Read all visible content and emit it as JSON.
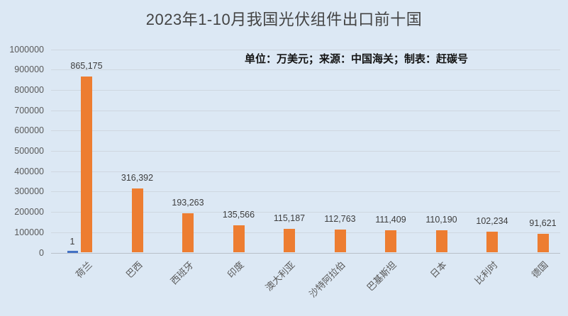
{
  "title": "2023年1-10月我国光伏组件出口前十国",
  "subtitle": "单位：万美元；来源：中国海关；制表：赶碳号",
  "chart_data": {
    "type": "bar",
    "title": "2023年1-10月我国光伏组件出口前十国",
    "subtitle": "单位：万美元；来源：中国海关；制表：赶碳号",
    "unit": "万美元",
    "source": "中国海关",
    "made_by": "赶碳号",
    "categories": [
      "荷兰",
      "巴西",
      "西班牙",
      "印度",
      "澳大利亚",
      "沙特阿拉伯",
      "巴基斯坦",
      "日本",
      "比利时",
      "德国"
    ],
    "series": [
      {
        "name": "marker-series-blue",
        "color": "#4472c4",
        "values": [
          1,
          null,
          null,
          null,
          null,
          null,
          null,
          null,
          null,
          null
        ],
        "labels": [
          "1",
          "",
          "",
          "",
          "",
          "",
          "",
          "",
          "",
          ""
        ]
      },
      {
        "name": "export-value-series-orange",
        "color": "#ed7d31",
        "values": [
          865175,
          316392,
          193263,
          135566,
          115187,
          112763,
          111409,
          110190,
          102234,
          91621
        ],
        "labels": [
          "865,175",
          "316,392",
          "193,263",
          "135,566",
          "115,187",
          "112,763",
          "111,409",
          "110,190",
          "102,234",
          "91,621"
        ]
      }
    ],
    "xlabel": "",
    "ylabel": "",
    "ylim": [
      0,
      1000000
    ],
    "ytick_step": 100000,
    "ytick_labels": [
      "0",
      "100000",
      "200000",
      "300000",
      "400000",
      "500000",
      "600000",
      "700000",
      "800000",
      "900000",
      "1000000"
    ],
    "grid": true,
    "legend_position": "none",
    "background_color": "#dce8f4",
    "gridline_color": "#cfd7e0",
    "axis_text_color": "#595959"
  }
}
